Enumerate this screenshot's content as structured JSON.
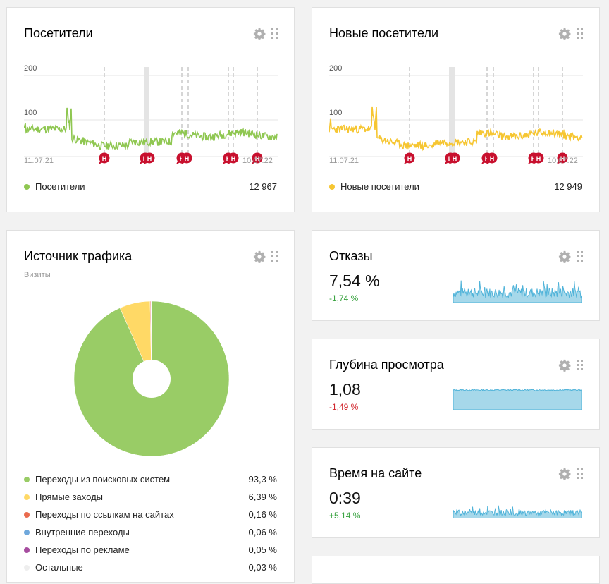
{
  "visitors": {
    "title": "Посетители",
    "y_ticks": [
      "200",
      "100"
    ],
    "x_start": "11.07.21",
    "x_end": "10.07.22",
    "legend": "Посетители",
    "total": "12 967",
    "color": "#8fc751",
    "marker": "Н"
  },
  "new_visitors": {
    "title": "Новые посетители",
    "y_ticks": [
      "200",
      "100"
    ],
    "x_start": "11.07.21",
    "x_end": "10.07.22",
    "legend": "Новые посетители",
    "total": "12 949",
    "color": "#f6c632",
    "marker": "Н"
  },
  "traffic": {
    "title": "Источник трафика",
    "subtitle": "Визиты",
    "items": [
      {
        "label": "Переходы из поисковых систем",
        "value": "93,3 %",
        "color": "#99cc66"
      },
      {
        "label": "Прямые заходы",
        "value": "6,39 %",
        "color": "#ffd966"
      },
      {
        "label": "Переходы по ссылкам на сайтах",
        "value": "0,16 %",
        "color": "#ea6b4e"
      },
      {
        "label": "Внутренние переходы",
        "value": "0,06 %",
        "color": "#6fa8dc"
      },
      {
        "label": "Переходы по рекламе",
        "value": "0,05 %",
        "color": "#a64d9f"
      },
      {
        "label": "Остальные",
        "value": "0,03 %",
        "color": "#eeeeee"
      }
    ]
  },
  "bounces": {
    "title": "Отказы",
    "value": "7,54 %",
    "delta": "-1,74 %",
    "delta_color": "#3aa341"
  },
  "depth": {
    "title": "Глубина просмотра",
    "value": "1,08",
    "delta": "-1,49 %",
    "delta_color": "#d1262d"
  },
  "time": {
    "title": "Время на сайте",
    "value": "0:39",
    "delta": "+5,14 %",
    "delta_color": "#3aa341"
  },
  "chart_data": [
    {
      "type": "pie",
      "title": "Источник трафика",
      "categories": [
        "Переходы из поисковых систем",
        "Прямые заходы",
        "Переходы по ссылкам на сайтах",
        "Внутренние переходы",
        "Переходы по рекламе",
        "Остальные"
      ],
      "values": [
        93.3,
        6.39,
        0.16,
        0.06,
        0.05,
        0.03
      ]
    }
  ]
}
